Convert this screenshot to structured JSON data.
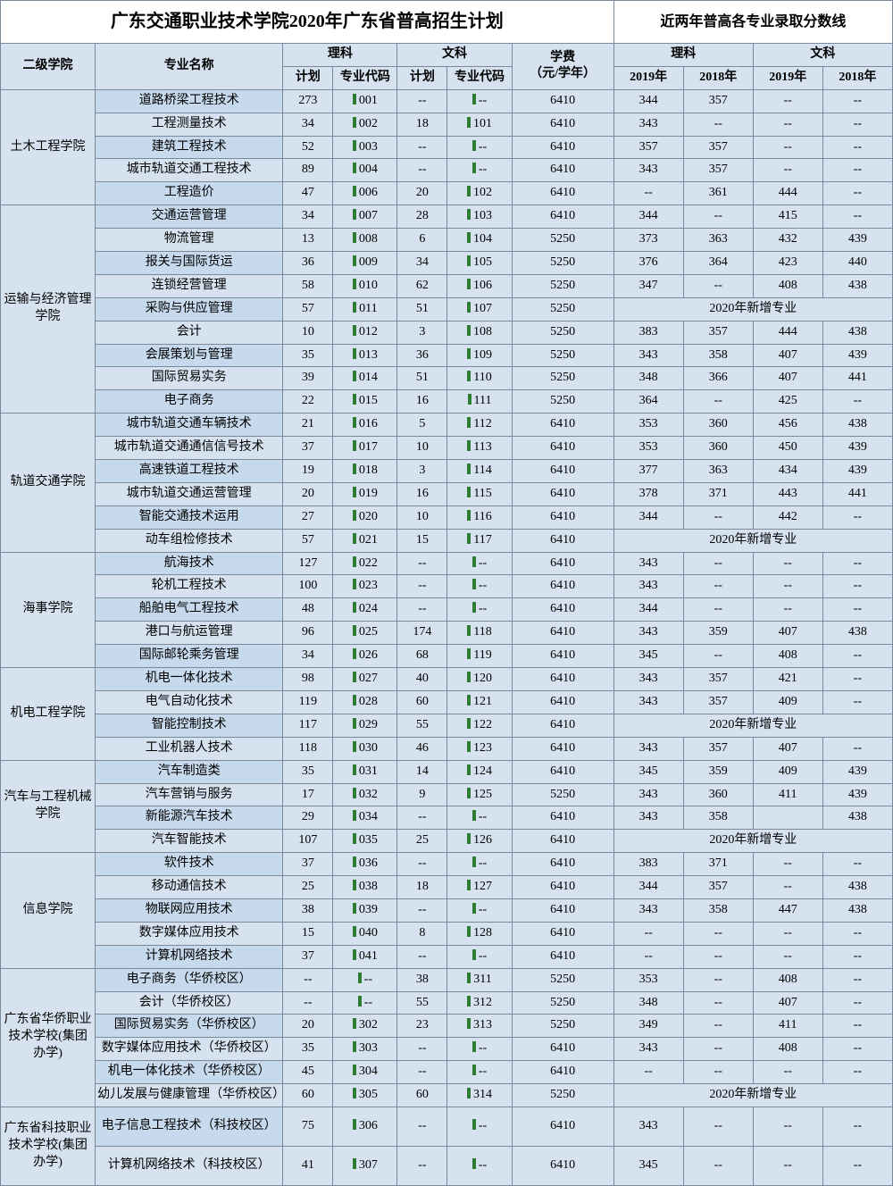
{
  "title_main": "广东交通职业技术学院2020年广东省普高招生计划",
  "title_right": "近两年普高各专业录取分数线",
  "h": {
    "college": "二级学院",
    "major": "专业名称",
    "sci": "理科",
    "arts": "文科",
    "plan": "计划",
    "code": "专业代码",
    "fee": "学费\n（元/学年）",
    "y19": "2019年",
    "y18": "2018年"
  },
  "new_major": "2020年新增专业",
  "colleges": [
    {
      "name": "土木工程学院",
      "rows": [
        {
          "m": "道路桥梁工程技术",
          "sp": "273",
          "sc": "001",
          "ap": "--",
          "ac": "--",
          "f": "6410",
          "s19": "344",
          "s18": "357",
          "a19": "--",
          "a18": "--"
        },
        {
          "m": "工程测量技术",
          "sp": "34",
          "sc": "002",
          "ap": "18",
          "ac": "101",
          "f": "6410",
          "s19": "343",
          "s18": "--",
          "a19": "--",
          "a18": "--"
        },
        {
          "m": "建筑工程技术",
          "sp": "52",
          "sc": "003",
          "ap": "--",
          "ac": "--",
          "f": "6410",
          "s19": "357",
          "s18": "357",
          "a19": "--",
          "a18": "--"
        },
        {
          "m": "城市轨道交通工程技术",
          "sp": "89",
          "sc": "004",
          "ap": "--",
          "ac": "--",
          "f": "6410",
          "s19": "343",
          "s18": "357",
          "a19": "--",
          "a18": "--"
        },
        {
          "m": "工程造价",
          "sp": "47",
          "sc": "006",
          "ap": "20",
          "ac": "102",
          "f": "6410",
          "s19": "--",
          "s18": "361",
          "a19": "444",
          "a18": "--"
        }
      ]
    },
    {
      "name": "运输与经济管理学院",
      "rows": [
        {
          "m": "交通运营管理",
          "sp": "34",
          "sc": "007",
          "ap": "28",
          "ac": "103",
          "f": "6410",
          "s19": "344",
          "s18": "--",
          "a19": "415",
          "a18": "--"
        },
        {
          "m": "物流管理",
          "sp": "13",
          "sc": "008",
          "ap": "6",
          "ac": "104",
          "f": "5250",
          "s19": "373",
          "s18": "363",
          "a19": "432",
          "a18": "439"
        },
        {
          "m": "报关与国际货运",
          "sp": "36",
          "sc": "009",
          "ap": "34",
          "ac": "105",
          "f": "5250",
          "s19": "376",
          "s18": "364",
          "a19": "423",
          "a18": "440"
        },
        {
          "m": "连锁经营管理",
          "sp": "58",
          "sc": "010",
          "ap": "62",
          "ac": "106",
          "f": "5250",
          "s19": "347",
          "s18": "--",
          "a19": "408",
          "a18": "438"
        },
        {
          "m": "采购与供应管理",
          "sp": "57",
          "sc": "011",
          "ap": "51",
          "ac": "107",
          "f": "5250",
          "new": true
        },
        {
          "m": "会计",
          "sp": "10",
          "sc": "012",
          "ap": "3",
          "ac": "108",
          "f": "5250",
          "s19": "383",
          "s18": "357",
          "a19": "444",
          "a18": "438"
        },
        {
          "m": "会展策划与管理",
          "sp": "35",
          "sc": "013",
          "ap": "36",
          "ac": "109",
          "f": "5250",
          "s19": "343",
          "s18": "358",
          "a19": "407",
          "a18": "439"
        },
        {
          "m": "国际贸易实务",
          "sp": "39",
          "sc": "014",
          "ap": "51",
          "ac": "110",
          "f": "5250",
          "s19": "348",
          "s18": "366",
          "a19": "407",
          "a18": "441"
        },
        {
          "m": "电子商务",
          "sp": "22",
          "sc": "015",
          "ap": "16",
          "ac": "111",
          "f": "5250",
          "s19": "364",
          "s18": "--",
          "a19": "425",
          "a18": "--"
        }
      ]
    },
    {
      "name": "轨道交通学院",
      "rows": [
        {
          "m": "城市轨道交通车辆技术",
          "sp": "21",
          "sc": "016",
          "ap": "5",
          "ac": "112",
          "f": "6410",
          "s19": "353",
          "s18": "360",
          "a19": "456",
          "a18": "438"
        },
        {
          "m": "城市轨道交通通信信号技术",
          "sp": "37",
          "sc": "017",
          "ap": "10",
          "ac": "113",
          "f": "6410",
          "s19": "353",
          "s18": "360",
          "a19": "450",
          "a18": "439"
        },
        {
          "m": "高速铁道工程技术",
          "sp": "19",
          "sc": "018",
          "ap": "3",
          "ac": "114",
          "f": "6410",
          "s19": "377",
          "s18": "363",
          "a19": "434",
          "a18": "439"
        },
        {
          "m": "城市轨道交通运营管理",
          "sp": "20",
          "sc": "019",
          "ap": "16",
          "ac": "115",
          "f": "6410",
          "s19": "378",
          "s18": "371",
          "a19": "443",
          "a18": "441"
        },
        {
          "m": "智能交通技术运用",
          "sp": "27",
          "sc": "020",
          "ap": "10",
          "ac": "116",
          "f": "6410",
          "s19": "344",
          "s18": "--",
          "a19": "442",
          "a18": "--"
        },
        {
          "m": "动车组检修技术",
          "sp": "57",
          "sc": "021",
          "ap": "15",
          "ac": "117",
          "f": "6410",
          "new": true
        }
      ]
    },
    {
      "name": "海事学院",
      "rows": [
        {
          "m": "航海技术",
          "sp": "127",
          "sc": "022",
          "ap": "--",
          "ac": "--",
          "f": "6410",
          "s19": "343",
          "s18": "--",
          "a19": "--",
          "a18": "--"
        },
        {
          "m": "轮机工程技术",
          "sp": "100",
          "sc": "023",
          "ap": "--",
          "ac": "--",
          "f": "6410",
          "s19": "343",
          "s18": "--",
          "a19": "--",
          "a18": "--"
        },
        {
          "m": "船舶电气工程技术",
          "sp": "48",
          "sc": "024",
          "ap": "--",
          "ac": "--",
          "f": "6410",
          "s19": "344",
          "s18": "--",
          "a19": "--",
          "a18": "--"
        },
        {
          "m": "港口与航运管理",
          "sp": "96",
          "sc": "025",
          "ap": "174",
          "ac": "118",
          "f": "6410",
          "s19": "343",
          "s18": "359",
          "a19": "407",
          "a18": "438"
        },
        {
          "m": "国际邮轮乘务管理",
          "sp": "34",
          "sc": "026",
          "ap": "68",
          "ac": "119",
          "f": "6410",
          "s19": "345",
          "s18": "--",
          "a19": "408",
          "a18": "--"
        }
      ]
    },
    {
      "name": "机电工程学院",
      "rows": [
        {
          "m": "机电一体化技术",
          "sp": "98",
          "sc": "027",
          "ap": "40",
          "ac": "120",
          "f": "6410",
          "s19": "343",
          "s18": "357",
          "a19": "421",
          "a18": "--"
        },
        {
          "m": "电气自动化技术",
          "sp": "119",
          "sc": "028",
          "ap": "60",
          "ac": "121",
          "f": "6410",
          "s19": "343",
          "s18": "357",
          "a19": "409",
          "a18": "--"
        },
        {
          "m": "智能控制技术",
          "sp": "117",
          "sc": "029",
          "ap": "55",
          "ac": "122",
          "f": "6410",
          "new": true
        },
        {
          "m": "工业机器人技术",
          "sp": "118",
          "sc": "030",
          "ap": "46",
          "ac": "123",
          "f": "6410",
          "s19": "343",
          "s18": "357",
          "a19": "407",
          "a18": "--"
        }
      ]
    },
    {
      "name": "汽车与工程机械学院",
      "rows": [
        {
          "m": "汽车制造类",
          "sp": "35",
          "sc": "031",
          "ap": "14",
          "ac": "124",
          "f": "6410",
          "s19": "345",
          "s18": "359",
          "a19": "409",
          "a18": "439"
        },
        {
          "m": "汽车营销与服务",
          "sp": "17",
          "sc": "032",
          "ap": "9",
          "ac": "125",
          "f": "5250",
          "s19": "343",
          "s18": "360",
          "a19": "411",
          "a18": "439"
        },
        {
          "m": "新能源汽车技术",
          "sp": "29",
          "sc": "034",
          "ap": "--",
          "ac": "--",
          "f": "6410",
          "s19": "343",
          "s18": "358",
          "a19": "",
          "a18": "438"
        },
        {
          "m": "汽车智能技术",
          "sp": "107",
          "sc": "035",
          "ap": "25",
          "ac": "126",
          "f": "6410",
          "new": true
        }
      ]
    },
    {
      "name": "信息学院",
      "rows": [
        {
          "m": "软件技术",
          "sp": "37",
          "sc": "036",
          "ap": "--",
          "ac": "--",
          "f": "6410",
          "s19": "383",
          "s18": "371",
          "a19": "--",
          "a18": "--"
        },
        {
          "m": "移动通信技术",
          "sp": "25",
          "sc": "038",
          "ap": "18",
          "ac": "127",
          "f": "6410",
          "s19": "344",
          "s18": "357",
          "a19": "--",
          "a18": "438"
        },
        {
          "m": "物联网应用技术",
          "sp": "38",
          "sc": "039",
          "ap": "--",
          "ac": "--",
          "f": "6410",
          "s19": "343",
          "s18": "358",
          "a19": "447",
          "a18": "438"
        },
        {
          "m": "数字媒体应用技术",
          "sp": "15",
          "sc": "040",
          "ap": "8",
          "ac": "128",
          "f": "6410",
          "s19": "--",
          "s18": "--",
          "a19": "--",
          "a18": "--"
        },
        {
          "m": "计算机网络技术",
          "sp": "37",
          "sc": "041",
          "ap": "--",
          "ac": "--",
          "f": "6410",
          "s19": "--",
          "s18": "--",
          "a19": "--",
          "a18": "--"
        }
      ]
    },
    {
      "name": "广东省华侨职业技术学校(集团办学)",
      "rows": [
        {
          "m": "电子商务（华侨校区）",
          "sp": "--",
          "sc": "--",
          "ap": "38",
          "ac": "311",
          "f": "5250",
          "s19": "353",
          "s18": "--",
          "a19": "408",
          "a18": "--"
        },
        {
          "m": "会计（华侨校区）",
          "sp": "--",
          "sc": "--",
          "ap": "55",
          "ac": "312",
          "f": "5250",
          "s19": "348",
          "s18": "--",
          "a19": "407",
          "a18": "--"
        },
        {
          "m": "国际贸易实务（华侨校区）",
          "sp": "20",
          "sc": "302",
          "ap": "23",
          "ac": "313",
          "f": "5250",
          "s19": "349",
          "s18": "--",
          "a19": "411",
          "a18": "--"
        },
        {
          "m": "数字媒体应用技术（华侨校区）",
          "sp": "35",
          "sc": "303",
          "ap": "--",
          "ac": "--",
          "f": "6410",
          "s19": "343",
          "s18": "--",
          "a19": "408",
          "a18": "--"
        },
        {
          "m": "机电一体化技术（华侨校区）",
          "sp": "45",
          "sc": "304",
          "ap": "--",
          "ac": "--",
          "f": "6410",
          "s19": "--",
          "s18": "--",
          "a19": "--",
          "a18": "--"
        },
        {
          "m": "幼儿发展与健康管理（华侨校区）",
          "sp": "60",
          "sc": "305",
          "ap": "60",
          "ac": "314",
          "f": "5250",
          "new": true
        }
      ]
    },
    {
      "name": "广东省科技职业技术学校(集团办学)",
      "rows": [
        {
          "m": "电子信息工程技术（科技校区）",
          "sp": "75",
          "sc": "306",
          "ap": "--",
          "ac": "--",
          "f": "6410",
          "s19": "343",
          "s18": "--",
          "a19": "--",
          "a18": "--",
          "tall": true
        },
        {
          "m": "计算机网络技术（科技校区）",
          "sp": "41",
          "sc": "307",
          "ap": "--",
          "ac": "--",
          "f": "6410",
          "s19": "345",
          "s18": "--",
          "a19": "--",
          "a18": "--",
          "tall": true
        }
      ]
    }
  ]
}
